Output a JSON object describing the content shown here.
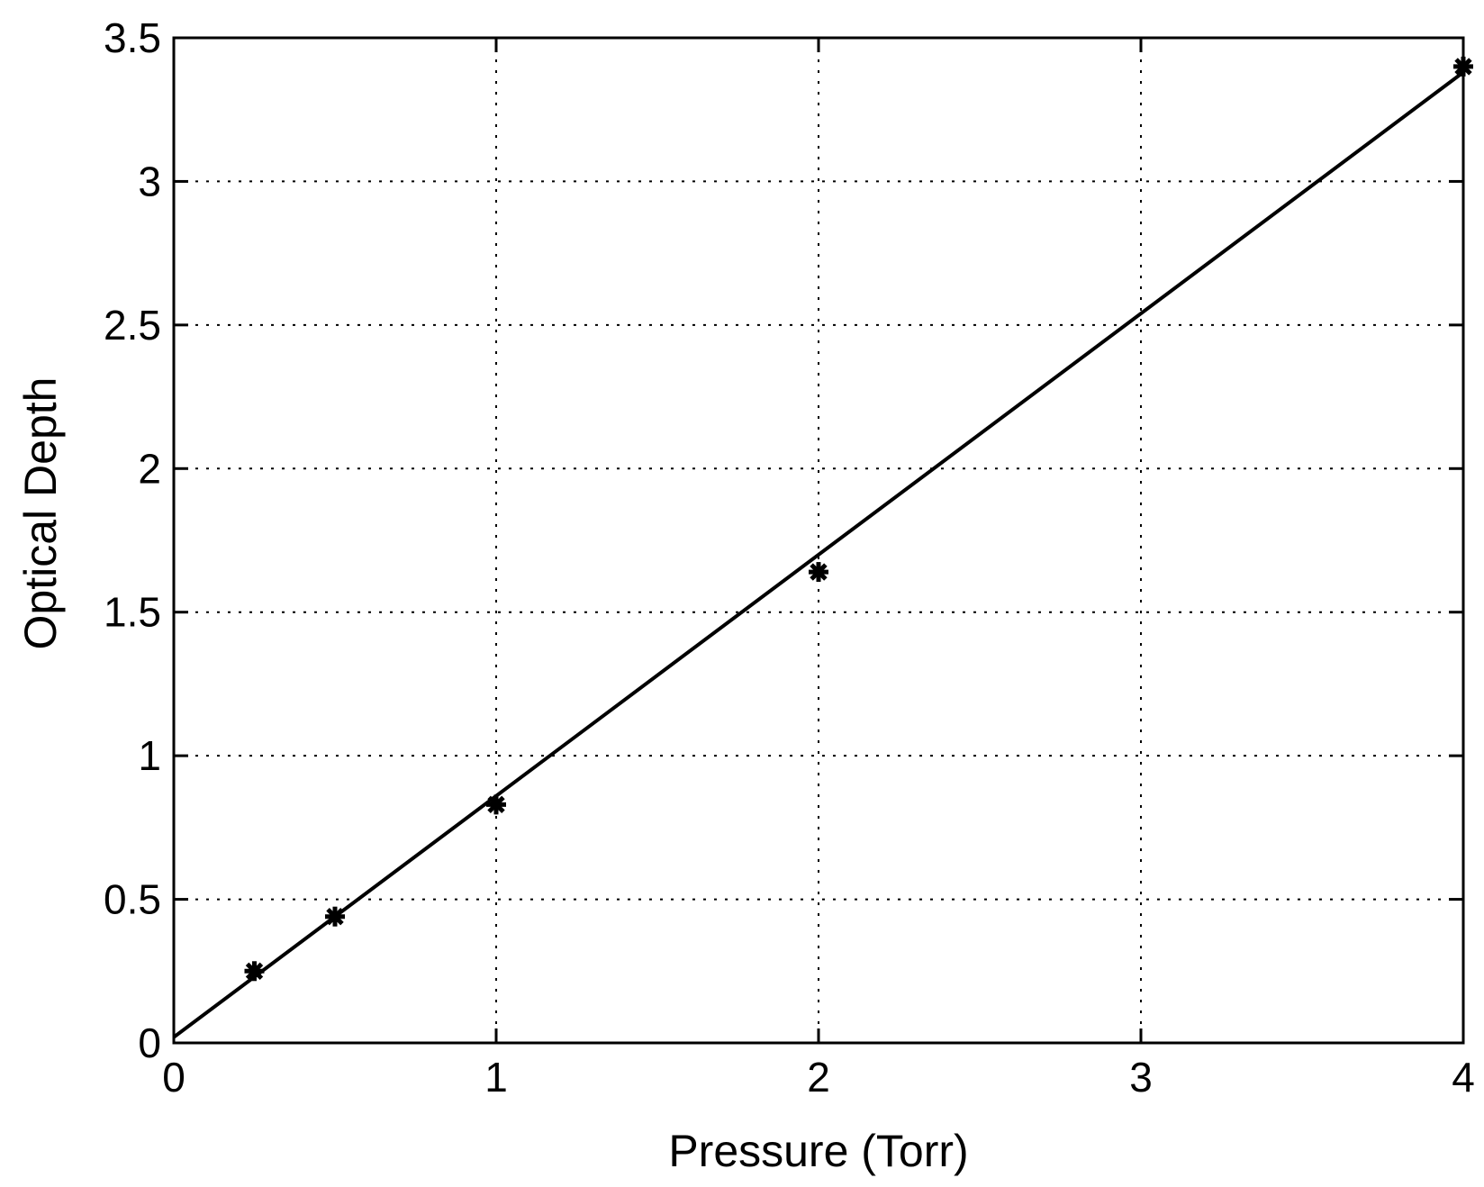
{
  "chart_data": {
    "type": "scatter",
    "title": "",
    "xlabel": "Pressure (Torr)",
    "ylabel": "Optical Depth",
    "xlim": [
      0,
      4
    ],
    "ylim": [
      0,
      3.5
    ],
    "xticks": [
      "0",
      "1",
      "2",
      "3",
      "4"
    ],
    "yticks": [
      "0",
      "0.5",
      "1",
      "1.5",
      "2",
      "2.5",
      "3",
      "3.5"
    ],
    "grid": true,
    "series": [
      {
        "kind": "markers",
        "marker": "asterisk",
        "x": [
          0.25,
          0.5,
          1,
          2,
          4
        ],
        "y": [
          0.25,
          0.44,
          0.83,
          1.64,
          3.4
        ]
      },
      {
        "kind": "fit-line",
        "x": [
          0,
          4
        ],
        "y": [
          0.02,
          3.38
        ]
      }
    ]
  }
}
